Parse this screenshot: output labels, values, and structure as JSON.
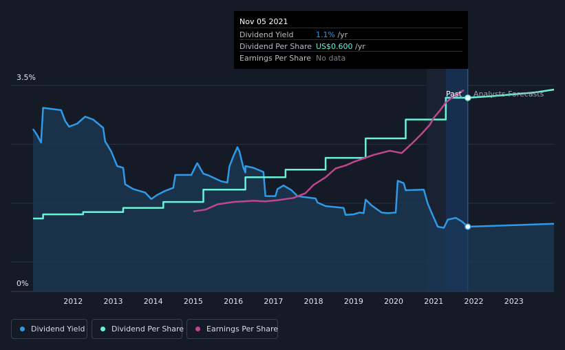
{
  "tooltip": {
    "date": "Nov 05 2021",
    "rows": [
      {
        "label": "Dividend Yield",
        "value": "1.1%",
        "unit": " /yr"
      },
      {
        "label": "Dividend Per Share",
        "value": "US$0.600",
        "unit": " /yr"
      },
      {
        "label": "Earnings Per Share",
        "value": "No data",
        "unit": ""
      }
    ]
  },
  "labels": {
    "past": "Past",
    "forecast": "Analysts Forecasts"
  },
  "legend": [
    {
      "label": "Dividend Yield",
      "color": "#2f9ae8"
    },
    {
      "label": "Dividend Per Share",
      "color": "#6cf1da"
    },
    {
      "label": "Earnings Per Share",
      "color": "#c0468f"
    }
  ],
  "chart_data": {
    "type": "line",
    "x_ticks": [
      "2012",
      "2013",
      "2014",
      "2015",
      "2016",
      "2017",
      "2018",
      "2019",
      "2020",
      "2021",
      "2022",
      "2023"
    ],
    "xlim": [
      2011.0,
      2024.0
    ],
    "y_ticks": [
      "0%",
      "3.5%"
    ],
    "ylim": [
      0,
      3.5
    ],
    "past_end": 2021.85,
    "grid": true,
    "legend_position": "bottom",
    "series": [
      {
        "name": "Dividend Yield",
        "unit": "%",
        "color": "#2f9ae8",
        "fill": true,
        "points": [
          [
            2011.0,
            2.76
          ],
          [
            2011.1,
            2.66
          ],
          [
            2011.2,
            2.53
          ],
          [
            2011.25,
            3.12
          ],
          [
            2011.7,
            3.08
          ],
          [
            2011.8,
            2.9
          ],
          [
            2011.9,
            2.8
          ],
          [
            2012.1,
            2.85
          ],
          [
            2012.3,
            2.97
          ],
          [
            2012.5,
            2.92
          ],
          [
            2012.75,
            2.78
          ],
          [
            2012.8,
            2.55
          ],
          [
            2012.95,
            2.38
          ],
          [
            2013.1,
            2.13
          ],
          [
            2013.25,
            2.1
          ],
          [
            2013.3,
            1.82
          ],
          [
            2013.5,
            1.74
          ],
          [
            2013.8,
            1.68
          ],
          [
            2013.95,
            1.57
          ],
          [
            2014.1,
            1.64
          ],
          [
            2014.3,
            1.71
          ],
          [
            2014.5,
            1.76
          ],
          [
            2014.55,
            1.98
          ],
          [
            2014.95,
            1.98
          ],
          [
            2015.05,
            2.12
          ],
          [
            2015.1,
            2.18
          ],
          [
            2015.25,
            2.0
          ],
          [
            2015.35,
            1.98
          ],
          [
            2015.7,
            1.87
          ],
          [
            2015.85,
            1.85
          ],
          [
            2015.9,
            2.12
          ],
          [
            2016.0,
            2.3
          ],
          [
            2016.1,
            2.45
          ],
          [
            2016.15,
            2.38
          ],
          [
            2016.25,
            2.1
          ],
          [
            2016.3,
            2.02
          ],
          [
            2016.3,
            2.13
          ],
          [
            2016.5,
            2.1
          ],
          [
            2016.75,
            2.03
          ],
          [
            2016.8,
            1.62
          ],
          [
            2017.05,
            1.62
          ],
          [
            2017.1,
            1.74
          ],
          [
            2017.25,
            1.8
          ],
          [
            2017.45,
            1.72
          ],
          [
            2017.6,
            1.62
          ],
          [
            2017.8,
            1.6
          ],
          [
            2018.05,
            1.58
          ],
          [
            2018.1,
            1.51
          ],
          [
            2018.3,
            1.45
          ],
          [
            2018.75,
            1.42
          ],
          [
            2018.8,
            1.3
          ],
          [
            2019.0,
            1.31
          ],
          [
            2019.15,
            1.34
          ],
          [
            2019.25,
            1.33
          ],
          [
            2019.3,
            1.56
          ],
          [
            2019.45,
            1.46
          ],
          [
            2019.7,
            1.34
          ],
          [
            2019.85,
            1.33
          ],
          [
            2020.05,
            1.34
          ],
          [
            2020.1,
            1.88
          ],
          [
            2020.25,
            1.84
          ],
          [
            2020.3,
            1.72
          ],
          [
            2020.75,
            1.73
          ],
          [
            2020.85,
            1.49
          ],
          [
            2020.95,
            1.33
          ],
          [
            2021.1,
            1.1
          ],
          [
            2021.25,
            1.08
          ],
          [
            2021.35,
            1.22
          ],
          [
            2021.55,
            1.25
          ],
          [
            2021.7,
            1.19
          ],
          [
            2021.85,
            1.1
          ],
          [
            2024.0,
            1.15
          ]
        ]
      },
      {
        "name": "Dividend Per Share",
        "color": "#6cf1da",
        "ylim": [
          0,
          3.5
        ],
        "points": [
          [
            2011.0,
            1.24
          ],
          [
            2011.25,
            1.24
          ],
          [
            2011.25,
            1.31
          ],
          [
            2012.25,
            1.31
          ],
          [
            2012.25,
            1.35
          ],
          [
            2013.25,
            1.35
          ],
          [
            2013.25,
            1.42
          ],
          [
            2014.25,
            1.42
          ],
          [
            2014.25,
            1.52
          ],
          [
            2015.25,
            1.52
          ],
          [
            2015.25,
            1.73
          ],
          [
            2016.3,
            1.73
          ],
          [
            2016.3,
            1.94
          ],
          [
            2017.3,
            1.94
          ],
          [
            2017.3,
            2.07
          ],
          [
            2018.3,
            2.07
          ],
          [
            2018.3,
            2.27
          ],
          [
            2019.3,
            2.27
          ],
          [
            2019.3,
            2.6
          ],
          [
            2020.3,
            2.6
          ],
          [
            2020.3,
            2.92
          ],
          [
            2021.3,
            2.92
          ],
          [
            2021.3,
            3.29
          ],
          [
            2021.85,
            3.29
          ],
          [
            2022.5,
            3.32
          ],
          [
            2023.5,
            3.38
          ],
          [
            2024.0,
            3.43
          ]
        ]
      },
      {
        "name": "Earnings Per Share",
        "color": "#c0468f",
        "ylim": [
          0,
          3.5
        ],
        "points": [
          [
            2015.0,
            1.36
          ],
          [
            2015.3,
            1.39
          ],
          [
            2015.6,
            1.48
          ],
          [
            2016.0,
            1.52
          ],
          [
            2016.5,
            1.54
          ],
          [
            2016.8,
            1.53
          ],
          [
            2017.1,
            1.55
          ],
          [
            2017.5,
            1.59
          ],
          [
            2017.8,
            1.67
          ],
          [
            2018.0,
            1.81
          ],
          [
            2018.3,
            1.94
          ],
          [
            2018.55,
            2.09
          ],
          [
            2018.8,
            2.14
          ],
          [
            2019.0,
            2.2
          ],
          [
            2019.5,
            2.32
          ],
          [
            2019.9,
            2.39
          ],
          [
            2020.2,
            2.35
          ],
          [
            2020.45,
            2.51
          ],
          [
            2020.7,
            2.68
          ],
          [
            2020.9,
            2.83
          ],
          [
            2021.0,
            2.95
          ],
          [
            2021.15,
            3.07
          ],
          [
            2021.3,
            3.21
          ],
          [
            2021.5,
            3.32
          ],
          [
            2021.75,
            3.42
          ]
        ]
      }
    ]
  }
}
